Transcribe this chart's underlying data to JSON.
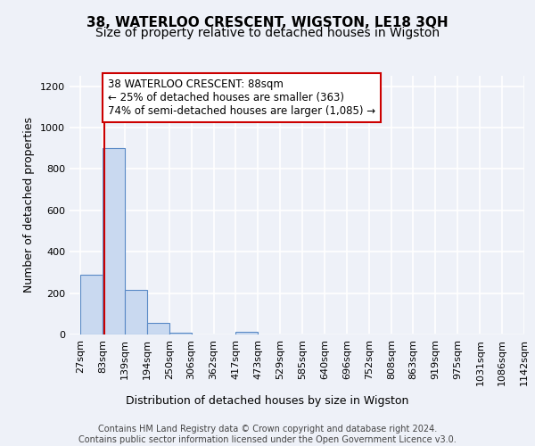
{
  "title": "38, WATERLOO CRESCENT, WIGSTON, LE18 3QH",
  "subtitle": "Size of property relative to detached houses in Wigston",
  "xlabel": "Distribution of detached houses by size in Wigston",
  "ylabel": "Number of detached properties",
  "bin_edges": [
    27,
    83,
    139,
    194,
    250,
    306,
    362,
    417,
    473,
    529,
    585,
    640,
    696,
    752,
    808,
    863,
    919,
    975,
    1031,
    1086,
    1142
  ],
  "bar_heights": [
    290,
    900,
    215,
    55,
    10,
    0,
    0,
    15,
    0,
    0,
    0,
    0,
    0,
    0,
    0,
    0,
    0,
    0,
    0,
    0
  ],
  "bar_color": "#c9d9f0",
  "bar_edge_color": "#5a8ac6",
  "property_line_x": 88,
  "property_line_color": "#cc0000",
  "annotation_line1": "38 WATERLOO CRESCENT: 88sqm",
  "annotation_line2": "← 25% of detached houses are smaller (363)",
  "annotation_line3": "74% of semi-detached houses are larger (1,085) →",
  "annotation_box_color": "#ffffff",
  "annotation_border_color": "#cc0000",
  "ylim": [
    0,
    1250
  ],
  "xlim_left": 0,
  "background_color": "#eef1f8",
  "grid_color": "#ffffff",
  "footer_line1": "Contains HM Land Registry data © Crown copyright and database right 2024.",
  "footer_line2": "Contains public sector information licensed under the Open Government Licence v3.0.",
  "title_fontsize": 11,
  "subtitle_fontsize": 10,
  "xlabel_fontsize": 9,
  "ylabel_fontsize": 9,
  "tick_fontsize": 8,
  "annotation_fontsize": 8.5,
  "footer_fontsize": 7
}
